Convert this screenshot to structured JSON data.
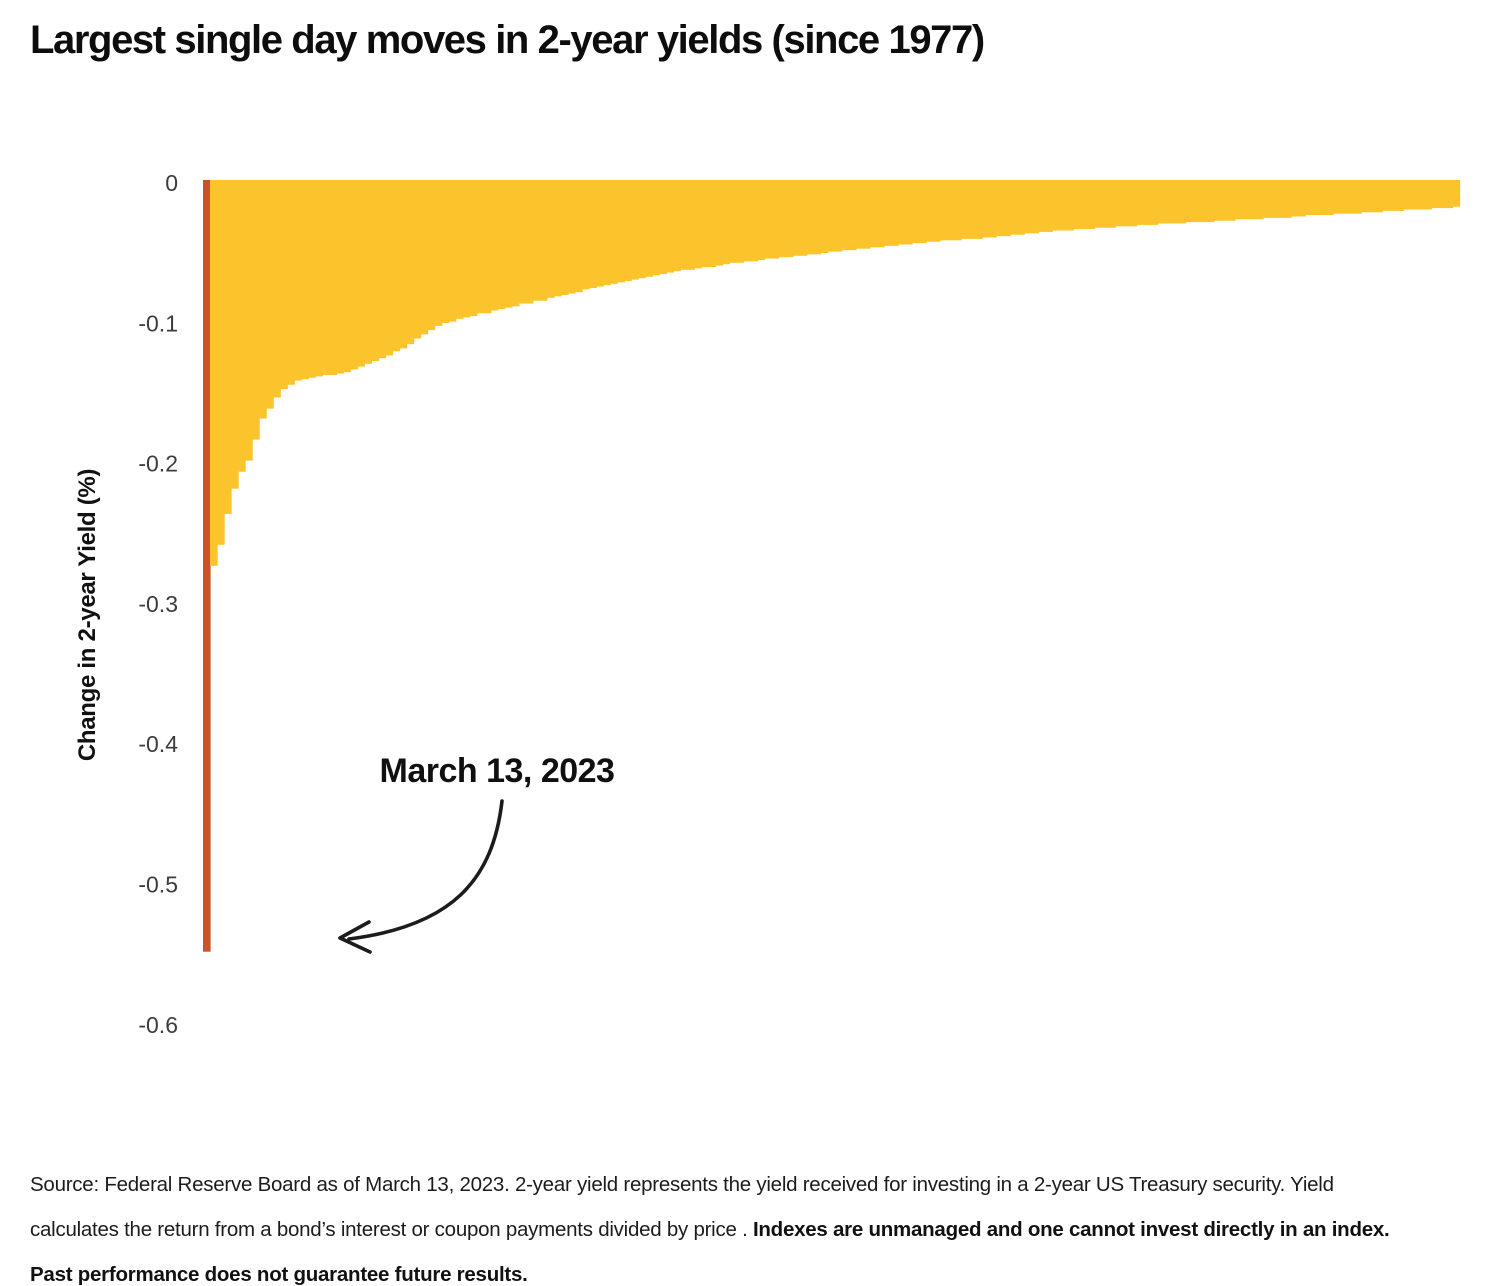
{
  "title": "Largest single day moves in 2-year yields (since 1977)",
  "chart_data": {
    "type": "bar",
    "title": "Largest single day moves in 2-year yields (since 1977)",
    "xlabel": "",
    "ylabel": "Change in 2-year Yield (%)",
    "ylim": [
      -0.6,
      0
    ],
    "yticks": [
      "0",
      "-0.1",
      "-0.2",
      "-0.3",
      "-0.4",
      "-0.5",
      "-0.6"
    ],
    "grid": "off",
    "bar_color": "#fbc42d",
    "highlight": {
      "index": 0,
      "value": -0.55,
      "color": "#c95229",
      "label": "March 13, 2023"
    },
    "annotation": {
      "label": "March 13, 2023"
    },
    "values": [
      -0.55,
      -0.275,
      -0.26,
      -0.238,
      -0.22,
      -0.208,
      -0.2,
      -0.185,
      -0.17,
      -0.163,
      -0.155,
      -0.149,
      -0.146,
      -0.143,
      -0.142,
      -0.141,
      -0.14,
      -0.139,
      -0.139,
      -0.138,
      -0.137,
      -0.135,
      -0.133,
      -0.131,
      -0.129,
      -0.127,
      -0.125,
      -0.122,
      -0.12,
      -0.117,
      -0.113,
      -0.11,
      -0.107,
      -0.104,
      -0.102,
      -0.101,
      -0.099,
      -0.098,
      -0.097,
      -0.095,
      -0.095,
      -0.093,
      -0.092,
      -0.091,
      -0.09,
      -0.088,
      -0.088,
      -0.086,
      -0.086,
      -0.084,
      -0.083,
      -0.082,
      -0.081,
      -0.08,
      -0.078,
      -0.077,
      -0.076,
      -0.075,
      -0.074,
      -0.073,
      -0.072,
      -0.071,
      -0.07,
      -0.069,
      -0.068,
      -0.067,
      -0.066,
      -0.065,
      -0.064,
      -0.064,
      -0.063,
      -0.062,
      -0.062,
      -0.061,
      -0.06,
      -0.059,
      -0.059,
      -0.058,
      -0.058,
      -0.057,
      -0.056,
      -0.056,
      -0.055,
      -0.055,
      -0.054,
      -0.054,
      -0.053,
      -0.053,
      -0.052,
      -0.051,
      -0.051,
      -0.05,
      -0.05,
      -0.049,
      -0.049,
      -0.048,
      -0.048,
      -0.047,
      -0.047,
      -0.046,
      -0.046,
      -0.045,
      -0.045,
      -0.044,
      -0.044,
      -0.043,
      -0.043,
      -0.043,
      -0.042,
      -0.042,
      -0.042,
      -0.041,
      -0.041,
      -0.04,
      -0.04,
      -0.039,
      -0.039,
      -0.038,
      -0.038,
      -0.037,
      -0.037,
      -0.036,
      -0.036,
      -0.036,
      -0.035,
      -0.035,
      -0.035,
      -0.034,
      -0.034,
      -0.034,
      -0.033,
      -0.033,
      -0.033,
      -0.032,
      -0.032,
      -0.032,
      -0.031,
      -0.031,
      -0.031,
      -0.031,
      -0.03,
      -0.03,
      -0.03,
      -0.03,
      -0.029,
      -0.029,
      -0.029,
      -0.028,
      -0.028,
      -0.028,
      -0.028,
      -0.027,
      -0.027,
      -0.027,
      -0.027,
      -0.026,
      -0.026,
      -0.025,
      -0.025,
      -0.025,
      -0.025,
      -0.024,
      -0.024,
      -0.024,
      -0.024,
      -0.023,
      -0.023,
      -0.023,
      -0.022,
      -0.022,
      -0.022,
      -0.021,
      -0.021,
      -0.021,
      -0.021,
      -0.02,
      -0.02,
      -0.02,
      -0.019
    ]
  },
  "footer": {
    "line1": "Source: Federal Reserve Board as of March 13, 2023. 2-year yield represents the yield received for investing in a 2-year US Treasury security. Yield",
    "line2_normal": "calculates the return from a bond’s interest or coupon payments divided by price . ",
    "line2_bold": "Indexes are unmanaged and one cannot invest directly in an index.",
    "line3_bold": "Past performance does not guarantee future results."
  }
}
